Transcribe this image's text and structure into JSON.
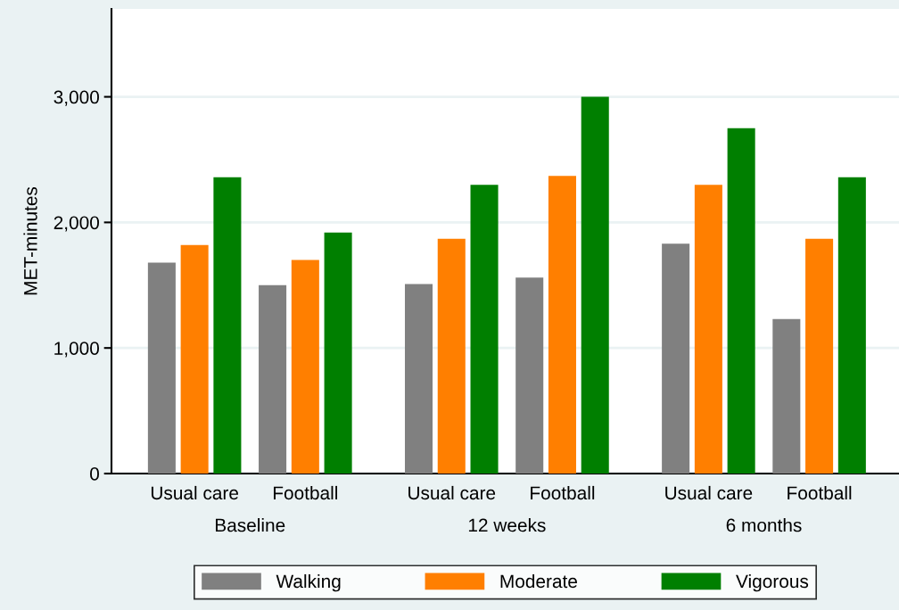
{
  "chart_data": {
    "type": "bar",
    "categories": [
      "Usual care",
      "Football",
      "Usual care",
      "Football",
      "Usual care",
      "Football"
    ],
    "series": [
      {
        "name": "Walking",
        "color": "#808080",
        "values": [
          1680,
          1500,
          1510,
          1560,
          1830,
          1230
        ]
      },
      {
        "name": "Moderate",
        "color": "#ff7f00",
        "values": [
          1820,
          1700,
          1870,
          2370,
          2300,
          1870
        ]
      },
      {
        "name": "Vigorous",
        "color": "#007f00",
        "values": [
          2360,
          1920,
          2300,
          3000,
          2750,
          2360
        ]
      }
    ],
    "ylabel": "MET-minutes",
    "ylim": [
      0,
      3700
    ],
    "yticks": [
      0,
      {
        "value": 1000,
        "label": "1,000"
      },
      {
        "value": 2000,
        "label": "2,000"
      },
      {
        "value": 3000,
        "label": "3,000"
      }
    ],
    "annotations": [
      "Baseline",
      "12 weeks",
      "6 months"
    ],
    "grid": "y",
    "legend": "bottom"
  }
}
